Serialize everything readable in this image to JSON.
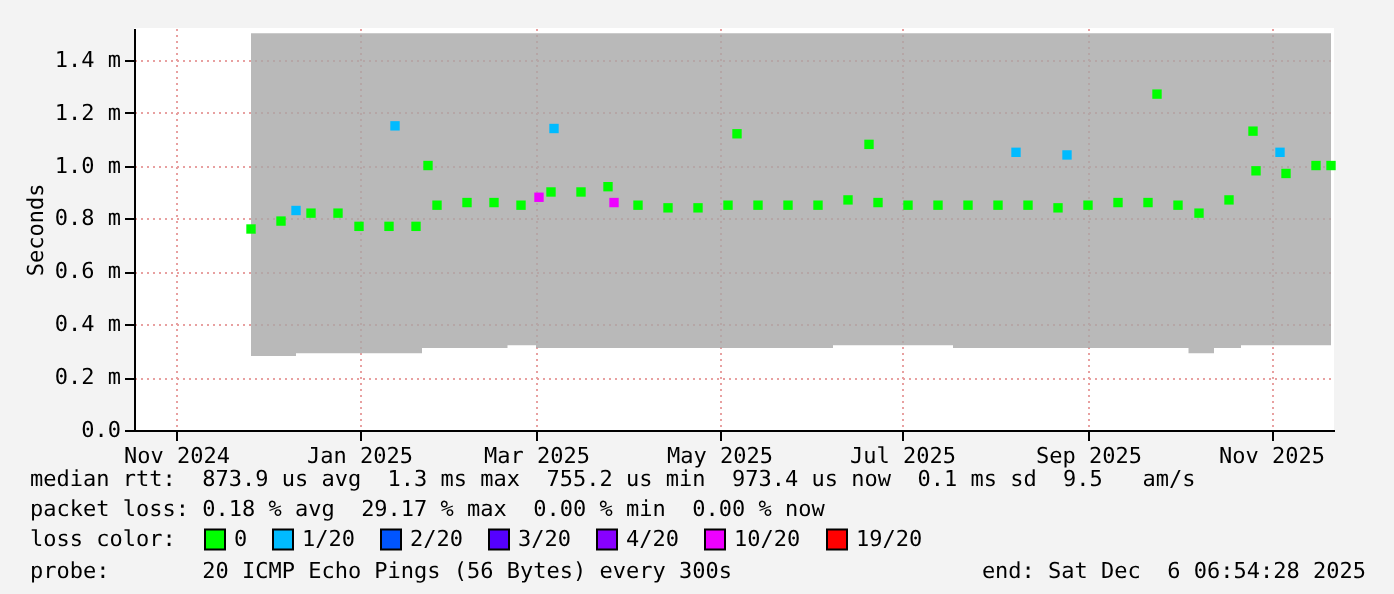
{
  "chart_data": {
    "type": "scatter",
    "ylabel": "Seconds",
    "legend_title": "loss color:",
    "legend": "bottom",
    "marker": "square",
    "grid": true,
    "xlim": [
      "2024-11-01",
      "2025-12-06"
    ],
    "xticks": [
      {
        "value": "2024-11-15",
        "label": "Nov 2024"
      },
      {
        "value": "2025-01-15",
        "label": "Jan 2025"
      },
      {
        "value": "2025-03-15",
        "label": "Mar 2025"
      },
      {
        "value": "2025-05-15",
        "label": "May 2025"
      },
      {
        "value": "2025-07-15",
        "label": "Jul 2025"
      },
      {
        "value": "2025-09-15",
        "label": "Sep 2025"
      },
      {
        "value": "2025-11-15",
        "label": "Nov 2025"
      }
    ],
    "ylim": [
      0,
      1.52
    ],
    "yticks": [
      {
        "value": 0,
        "label": "0.0"
      },
      {
        "value": 0.2,
        "label": "0.2 m"
      },
      {
        "value": 0.4,
        "label": "0.4 m"
      },
      {
        "value": 0.6,
        "label": "0.6 m"
      },
      {
        "value": 0.8,
        "label": "0.8 m"
      },
      {
        "value": 1.0,
        "label": "1.0 m"
      },
      {
        "value": 1.2,
        "label": "1.2 m"
      },
      {
        "value": 1.4,
        "label": "1.4 m"
      }
    ],
    "series": [
      {
        "name": "0",
        "color": "#00ff00",
        "x": [
          "2024-12-10",
          "2024-12-20",
          "2024-12-30",
          "2025-01-08",
          "2025-01-15",
          "2025-01-25",
          "2025-02-03",
          "2025-02-07",
          "2025-02-10",
          "2025-02-20",
          "2025-03-01",
          "2025-03-10",
          "2025-03-20",
          "2025-03-30",
          "2025-04-08",
          "2025-04-18",
          "2025-04-28",
          "2025-05-08",
          "2025-05-18",
          "2025-05-21",
          "2025-05-28",
          "2025-06-07",
          "2025-06-17",
          "2025-06-27",
          "2025-07-04",
          "2025-07-07",
          "2025-07-17",
          "2025-07-27",
          "2025-08-06",
          "2025-08-16",
          "2025-08-26",
          "2025-09-05",
          "2025-09-15",
          "2025-09-25",
          "2025-10-05",
          "2025-10-08",
          "2025-10-15",
          "2025-10-22",
          "2025-11-01",
          "2025-11-09",
          "2025-11-10",
          "2025-11-20",
          "2025-11-30",
          "2025-12-05"
        ],
        "values": [
          0.76,
          0.79,
          0.82,
          0.82,
          0.77,
          0.77,
          0.77,
          1.0,
          0.85,
          0.86,
          0.86,
          0.85,
          0.9,
          0.9,
          0.92,
          0.85,
          0.84,
          0.84,
          0.85,
          1.12,
          0.85,
          0.85,
          0.85,
          0.87,
          1.08,
          0.86,
          0.85,
          0.85,
          0.85,
          0.85,
          0.85,
          0.84,
          0.85,
          0.86,
          0.86,
          1.27,
          0.85,
          0.82,
          0.87,
          1.13,
          0.98,
          0.97,
          1.0,
          1.0
        ],
        "lower": [
          0.28,
          0.28,
          0.29,
          0.29,
          0.29,
          0.29,
          0.29,
          0.31,
          0.31,
          0.31,
          0.31,
          0.32,
          0.31,
          0.31,
          0.31,
          0.31,
          0.31,
          0.31,
          0.31,
          0.31,
          0.31,
          0.31,
          0.31,
          0.32,
          0.32,
          0.32,
          0.32,
          0.32,
          0.31,
          0.31,
          0.31,
          0.31,
          0.31,
          0.31,
          0.31,
          0.31,
          0.31,
          0.29,
          0.31,
          0.32,
          0.32,
          0.32,
          0.32,
          0.32
        ],
        "upper": [
          1.5,
          1.5,
          1.5,
          1.5,
          1.5,
          1.5,
          1.5,
          1.5,
          1.5,
          1.5,
          1.5,
          1.5,
          1.5,
          1.5,
          1.5,
          1.5,
          1.5,
          1.5,
          1.5,
          1.5,
          1.5,
          1.5,
          1.5,
          1.5,
          1.5,
          1.5,
          1.5,
          1.5,
          1.5,
          1.5,
          1.5,
          1.5,
          1.5,
          1.5,
          1.5,
          1.5,
          1.5,
          1.5,
          1.5,
          1.5,
          1.5,
          1.5,
          1.5,
          1.5
        ]
      },
      {
        "name": "1/20",
        "color": "#00bbff",
        "x": [
          "2024-12-25",
          "2025-01-27",
          "2025-03-21",
          "2025-08-22",
          "2025-09-08",
          "2025-11-18"
        ],
        "values": [
          0.83,
          1.15,
          1.14,
          1.05,
          1.04,
          1.05
        ]
      },
      {
        "name": "2/20",
        "color": "#0055ff"
      },
      {
        "name": "3/20",
        "color": "#5500ff"
      },
      {
        "name": "4/20",
        "color": "#8800ff"
      },
      {
        "name": "10/20",
        "color": "#ee00ff",
        "x": [
          "2025-03-16",
          "2025-04-10"
        ],
        "values": [
          0.88,
          0.86
        ]
      },
      {
        "name": "19/20",
        "color": "#ff0000"
      }
    ],
    "annotations": [
      "median rtt:  873.9 us avg  1.3 ms max  755.2 us min  973.4 us now  0.1 ms sd  9.5   am/s",
      "packet loss: 0.18 % avg  29.17 % max  0.00 % min  0.00 % now",
      "probe:       20 ICMP Echo Pings (56 Bytes) every 300s",
      "end: Sat Dec  6 06:54:28 2025"
    ]
  }
}
